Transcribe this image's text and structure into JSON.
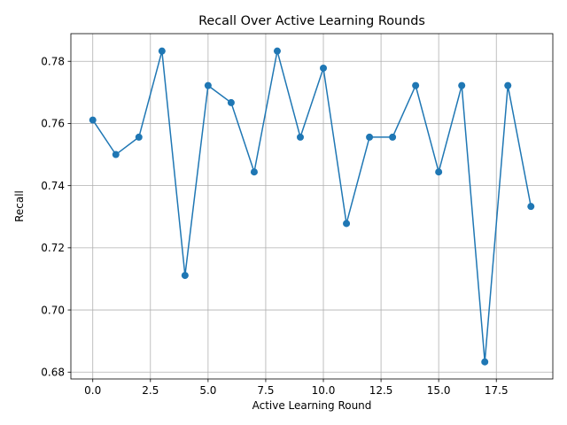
{
  "chart_data": {
    "type": "line",
    "title": "Recall Over Active Learning Rounds",
    "xlabel": "Active Learning Round",
    "ylabel": "Recall",
    "xlim": [
      -0.95,
      19.95
    ],
    "ylim": [
      0.6778,
      0.7889
    ],
    "grid": true,
    "marker": "circle",
    "color": "#1f77b4",
    "x_ticks": [
      0.0,
      2.5,
      5.0,
      7.5,
      10.0,
      12.5,
      15.0,
      17.5
    ],
    "x_tick_labels": [
      "0.0",
      "2.5",
      "5.0",
      "7.5",
      "10.0",
      "12.5",
      "15.0",
      "17.5"
    ],
    "y_ticks": [
      0.68,
      0.7,
      0.72,
      0.74,
      0.76,
      0.78
    ],
    "y_tick_labels": [
      "0.68",
      "0.70",
      "0.72",
      "0.74",
      "0.76",
      "0.78"
    ],
    "series": [
      {
        "x": [
          0,
          1,
          2,
          3,
          4,
          5,
          6,
          7,
          8,
          9,
          10,
          11,
          12,
          13,
          14,
          15,
          16,
          17,
          18,
          19
        ],
        "y": [
          0.7611,
          0.75,
          0.7556,
          0.7833,
          0.7111,
          0.7722,
          0.7667,
          0.7444,
          0.7833,
          0.7556,
          0.7778,
          0.7278,
          0.7556,
          0.7556,
          0.7722,
          0.7444,
          0.7722,
          0.6833,
          0.7722,
          0.7333
        ]
      }
    ]
  }
}
